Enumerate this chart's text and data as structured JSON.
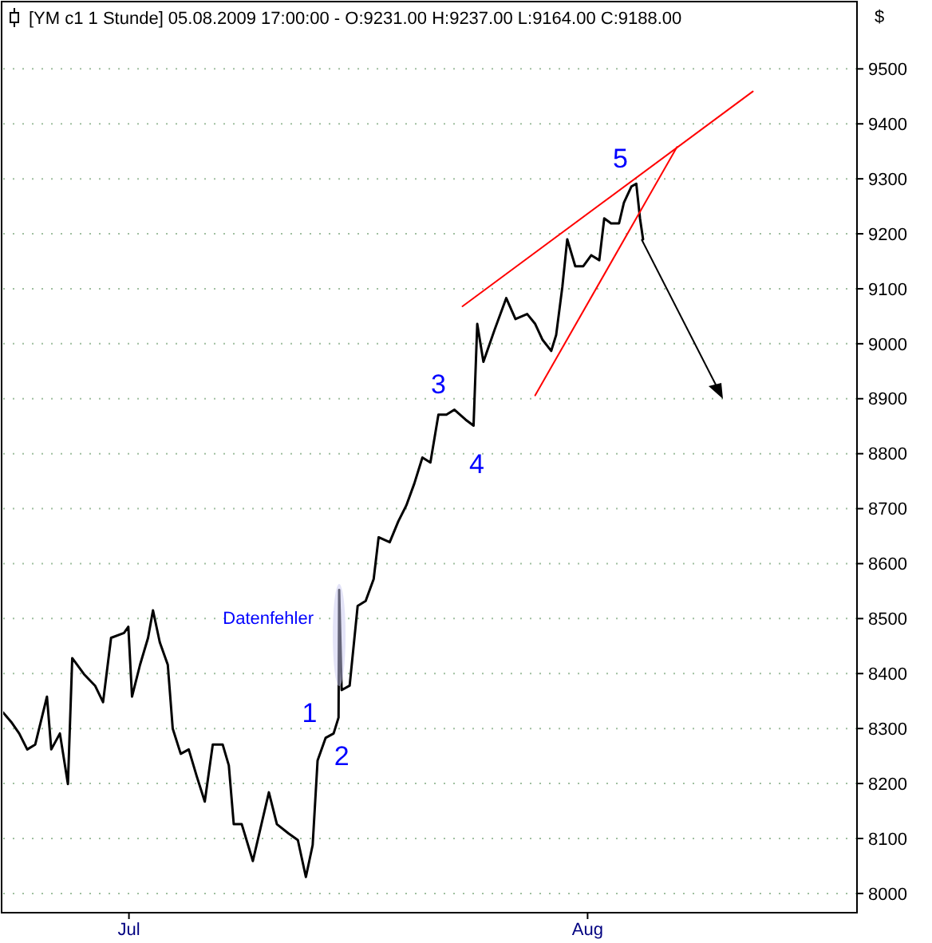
{
  "chart_data": {
    "type": "line",
    "title": "[YM c1 1 Stunde] 05.08.2009 17:00:00 - O:9231.00 H:9237.00 L:9164.00 C:9188.00",
    "ylabel": "$",
    "xlim": [
      "2009-06-22T12:00",
      "2009-08-19T05:00"
    ],
    "ylim": [
      7965,
      9515
    ],
    "xticks": [
      {
        "value": "2009-07-01",
        "label": "Jul"
      },
      {
        "value": "2009-08-01",
        "label": "Aug"
      }
    ],
    "yticks": [
      8000,
      8100,
      8200,
      8300,
      8400,
      8500,
      8600,
      8700,
      8800,
      8900,
      9000,
      9100,
      9200,
      9300,
      9400,
      9500
    ],
    "grid": "y",
    "x": [
      "2009-06-22T12:00",
      "2009-06-23T01:00",
      "2009-06-23T14:00",
      "2009-06-24T03:00",
      "2009-06-24T16:00",
      "2009-06-25T11:00",
      "2009-06-25T18:00",
      "2009-06-26T08:00",
      "2009-06-26T21:00",
      "2009-06-27T04:00",
      "2009-06-27T23:00",
      "2009-06-28T17:00",
      "2009-06-29T06:00",
      "2009-06-29T19:00",
      "2009-06-30T16:00",
      "2009-06-30T23:00",
      "2009-07-01T05:00",
      "2009-07-01T18:00",
      "2009-07-02T07:00",
      "2009-07-02T15:00",
      "2009-07-03T02:00",
      "2009-07-03T15:00",
      "2009-07-03T23:00",
      "2009-07-04T12:00",
      "2009-07-05T01:00",
      "2009-07-05T14:00",
      "2009-07-06T03:00",
      "2009-07-06T16:00",
      "2009-07-07T08:00",
      "2009-07-07T18:00",
      "2009-07-08T02:00",
      "2009-07-08T15:00",
      "2009-07-09T09:00",
      "2009-07-10T11:00",
      "2009-07-11T00:00",
      "2009-07-11T19:00",
      "2009-07-12T10:00",
      "2009-07-12T23:00",
      "2009-07-13T10:00",
      "2009-07-13T18:00",
      "2009-07-14T07:00",
      "2009-07-14T20:00",
      "2009-07-15T04:00",
      "2009-07-15T05:00",
      "2009-07-15T09:00",
      "2009-07-15T22:00",
      "2009-07-16T11:00",
      "2009-07-17T00:00",
      "2009-07-17T13:00",
      "2009-07-17T21:00",
      "2009-07-18T15:00",
      "2009-07-19T05:00",
      "2009-07-19T18:00",
      "2009-07-20T07:00",
      "2009-07-20T20:00",
      "2009-07-21T09:00",
      "2009-07-21T22:00",
      "2009-07-22T11:00",
      "2009-07-23T00:00",
      "2009-07-23T18:00",
      "2009-07-24T07:00",
      "2009-07-24T13:00",
      "2009-07-24T23:00",
      "2009-07-25T17:00",
      "2009-07-26T12:00",
      "2009-07-27T03:00",
      "2009-07-27T22:00",
      "2009-07-28T11:00",
      "2009-07-28T23:00",
      "2009-07-29T13:00",
      "2009-07-29T21:00",
      "2009-07-30T07:00",
      "2009-07-30T15:00",
      "2009-07-31T04:00",
      "2009-07-31T17:00",
      "2009-08-01T06:00",
      "2009-08-01T19:00",
      "2009-08-02T03:00",
      "2009-08-02T14:00",
      "2009-08-03T03:00",
      "2009-08-03T11:00",
      "2009-08-03T23:00",
      "2009-08-04T07:00",
      "2009-08-04T13:00",
      "2009-08-04T18:00"
    ],
    "series": [
      {
        "color": "#000000",
        "values": [
          8329,
          8312,
          8291,
          8262,
          8271,
          8358,
          8262,
          8291,
          8199,
          8428,
          8399,
          8378,
          8348,
          8465,
          8474,
          8485,
          8358,
          8416,
          8465,
          8515,
          8457,
          8416,
          8300,
          8254,
          8262,
          8213,
          8167,
          8271,
          8271,
          8233,
          8126,
          8126,
          8059,
          8184,
          8126,
          8109,
          8097,
          8030,
          8088,
          8242,
          8283,
          8291,
          8320,
          8552,
          8370,
          8378,
          8523,
          8532,
          8572,
          8648,
          8639,
          8677,
          8706,
          8746,
          8793,
          8784,
          8871,
          8871,
          8880,
          8862,
          8851,
          9036,
          8967,
          9025,
          9083,
          9045,
          9054,
          9036,
          9007,
          8987,
          9016,
          9103,
          9190,
          9141,
          9141,
          9161,
          9152,
          9228,
          9219,
          9219,
          9257,
          9286,
          9291,
          9228,
          9190
        ]
      },
      {
        "type": "line",
        "color": "#ff0000",
        "x": [
          "2009-07-23T13:00",
          "2009-08-12T04:00"
        ],
        "values": [
          9068,
          9459
        ]
      },
      {
        "type": "line",
        "color": "#ff0000",
        "x": [
          "2009-07-28T11:00",
          "2009-08-07T01:00"
        ],
        "values": [
          8906,
          9358
        ]
      }
    ],
    "annotations": [
      {
        "text": "Datenfehler",
        "x": "2009-07-15T05:00",
        "y": 8470
      },
      {
        "text": "1",
        "x": "2009-07-14T07:00",
        "y": 8283
      },
      {
        "text": "2",
        "x": "2009-07-15T04:00",
        "y": 8320
      },
      {
        "text": "3",
        "x": "2009-07-23T00:00",
        "y": 8880
      },
      {
        "text": "4",
        "x": "2009-07-24T07:00",
        "y": 8851
      },
      {
        "text": "5",
        "x": "2009-08-04T07:00",
        "y": 9291
      }
    ]
  }
}
